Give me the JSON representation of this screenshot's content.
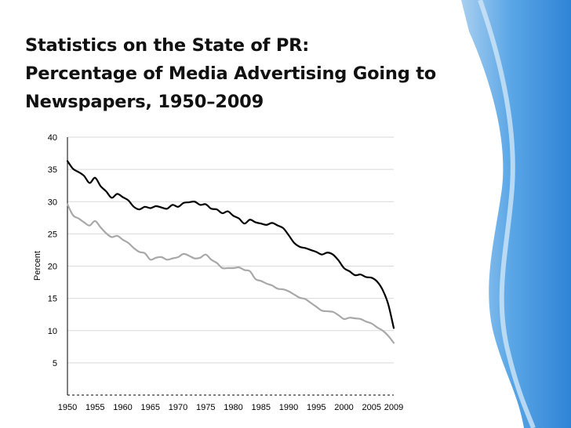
{
  "slide": {
    "title_lines": [
      "Statistics on the State of PR:",
      "Percentage of Media Advertising Going to",
      "Newspapers, 1950–2009"
    ]
  },
  "colors": {
    "series_black": "#000000",
    "series_gray": "#a8a8a8",
    "gridline": "#d9d9d9",
    "accent_blue": "#3d8fd9"
  },
  "chart_data": {
    "type": "line",
    "title": "",
    "xlabel": "",
    "ylabel": "Percent",
    "xlim": [
      1950,
      2009
    ],
    "ylim": [
      0,
      40
    ],
    "x_tick_labels": [
      "1950",
      "1955",
      "1960",
      "1965",
      "1970",
      "1975",
      "1980",
      "1985",
      "1990",
      "1995",
      "2000",
      "2005",
      "2009"
    ],
    "y_tick_labels": [
      "5",
      "10",
      "15",
      "20",
      "25",
      "30",
      "35",
      "40"
    ],
    "grid": true,
    "legend": "none",
    "series": [
      {
        "color": "#000000",
        "points": [
          [
            1950,
            36.3
          ],
          [
            1951,
            35.1
          ],
          [
            1952,
            34.6
          ],
          [
            1953,
            34.0
          ],
          [
            1954,
            32.9
          ],
          [
            1955,
            33.7
          ],
          [
            1956,
            32.4
          ],
          [
            1957,
            31.6
          ],
          [
            1958,
            30.6
          ],
          [
            1959,
            31.2
          ],
          [
            1960,
            30.7
          ],
          [
            1961,
            30.2
          ],
          [
            1962,
            29.2
          ],
          [
            1963,
            28.8
          ],
          [
            1964,
            29.2
          ],
          [
            1965,
            29.0
          ],
          [
            1966,
            29.3
          ],
          [
            1967,
            29.1
          ],
          [
            1968,
            28.9
          ],
          [
            1969,
            29.5
          ],
          [
            1970,
            29.2
          ],
          [
            1971,
            29.8
          ],
          [
            1972,
            29.9
          ],
          [
            1973,
            30.0
          ],
          [
            1974,
            29.5
          ],
          [
            1975,
            29.6
          ],
          [
            1976,
            28.9
          ],
          [
            1977,
            28.8
          ],
          [
            1978,
            28.2
          ],
          [
            1979,
            28.5
          ],
          [
            1980,
            27.8
          ],
          [
            1981,
            27.4
          ],
          [
            1982,
            26.6
          ],
          [
            1983,
            27.2
          ],
          [
            1984,
            26.8
          ],
          [
            1985,
            26.6
          ],
          [
            1986,
            26.4
          ],
          [
            1987,
            26.7
          ],
          [
            1988,
            26.3
          ],
          [
            1989,
            25.9
          ],
          [
            1990,
            24.8
          ],
          [
            1991,
            23.6
          ],
          [
            1992,
            23.0
          ],
          [
            1993,
            22.8
          ],
          [
            1994,
            22.5
          ],
          [
            1995,
            22.2
          ],
          [
            1996,
            21.8
          ],
          [
            1997,
            22.1
          ],
          [
            1998,
            21.8
          ],
          [
            1999,
            20.9
          ],
          [
            2000,
            19.7
          ],
          [
            2001,
            19.2
          ],
          [
            2002,
            18.6
          ],
          [
            2003,
            18.7
          ],
          [
            2004,
            18.3
          ],
          [
            2005,
            18.2
          ],
          [
            2006,
            17.6
          ],
          [
            2007,
            16.3
          ],
          [
            2008,
            14.1
          ],
          [
            2009,
            10.4
          ]
        ]
      },
      {
        "color": "#a8a8a8",
        "points": [
          [
            1950,
            29.6
          ],
          [
            1951,
            27.9
          ],
          [
            1952,
            27.4
          ],
          [
            1953,
            26.8
          ],
          [
            1954,
            26.3
          ],
          [
            1955,
            27.0
          ],
          [
            1956,
            26.0
          ],
          [
            1957,
            25.1
          ],
          [
            1958,
            24.5
          ],
          [
            1959,
            24.7
          ],
          [
            1960,
            24.1
          ],
          [
            1961,
            23.6
          ],
          [
            1962,
            22.8
          ],
          [
            1963,
            22.2
          ],
          [
            1964,
            22.0
          ],
          [
            1965,
            21.0
          ],
          [
            1966,
            21.3
          ],
          [
            1967,
            21.4
          ],
          [
            1968,
            21.0
          ],
          [
            1969,
            21.2
          ],
          [
            1970,
            21.4
          ],
          [
            1971,
            21.9
          ],
          [
            1972,
            21.6
          ],
          [
            1973,
            21.2
          ],
          [
            1974,
            21.3
          ],
          [
            1975,
            21.8
          ],
          [
            1976,
            21.0
          ],
          [
            1977,
            20.5
          ],
          [
            1978,
            19.7
          ],
          [
            1979,
            19.7
          ],
          [
            1980,
            19.7
          ],
          [
            1981,
            19.8
          ],
          [
            1982,
            19.4
          ],
          [
            1983,
            19.2
          ],
          [
            1984,
            18.0
          ],
          [
            1985,
            17.7
          ],
          [
            1986,
            17.3
          ],
          [
            1987,
            17.0
          ],
          [
            1988,
            16.5
          ],
          [
            1989,
            16.4
          ],
          [
            1990,
            16.1
          ],
          [
            1991,
            15.6
          ],
          [
            1992,
            15.1
          ],
          [
            1993,
            14.9
          ],
          [
            1994,
            14.3
          ],
          [
            1995,
            13.7
          ],
          [
            1996,
            13.1
          ],
          [
            1997,
            13.0
          ],
          [
            1998,
            12.9
          ],
          [
            1999,
            12.4
          ],
          [
            2000,
            11.8
          ],
          [
            2001,
            12.0
          ],
          [
            2002,
            11.9
          ],
          [
            2003,
            11.8
          ],
          [
            2004,
            11.4
          ],
          [
            2005,
            11.1
          ],
          [
            2006,
            10.5
          ],
          [
            2007,
            10.0
          ],
          [
            2008,
            9.2
          ],
          [
            2009,
            8.1
          ]
        ]
      }
    ]
  }
}
